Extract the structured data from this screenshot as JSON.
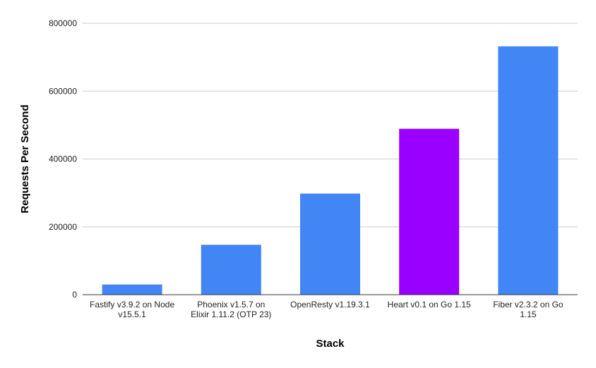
{
  "chart_data": {
    "type": "bar",
    "title": "",
    "xlabel": "Stack",
    "ylabel": "Requests Per Second",
    "ylim": [
      0,
      800000
    ],
    "yticks": [
      "0",
      "200000",
      "400000",
      "600000",
      "800000"
    ],
    "grid": true,
    "legend": "none",
    "categories": [
      [
        "Fastify v3.9.2 on Node",
        "v15.5.1"
      ],
      [
        "Phoenix v1.5.7 on",
        "Elixir 1.11.2 (OTP 23)"
      ],
      [
        "OpenResty v1.19.3.1"
      ],
      [
        "Heart v0.1 on Go 1.15"
      ],
      [
        "Fiber v2.3.2 on Go",
        "1.15"
      ]
    ],
    "values": [
      30000,
      147000,
      298000,
      489000,
      732000
    ],
    "colors": [
      "#4285f4",
      "#4285f4",
      "#4285f4",
      "#9900ff",
      "#4285f4"
    ]
  }
}
